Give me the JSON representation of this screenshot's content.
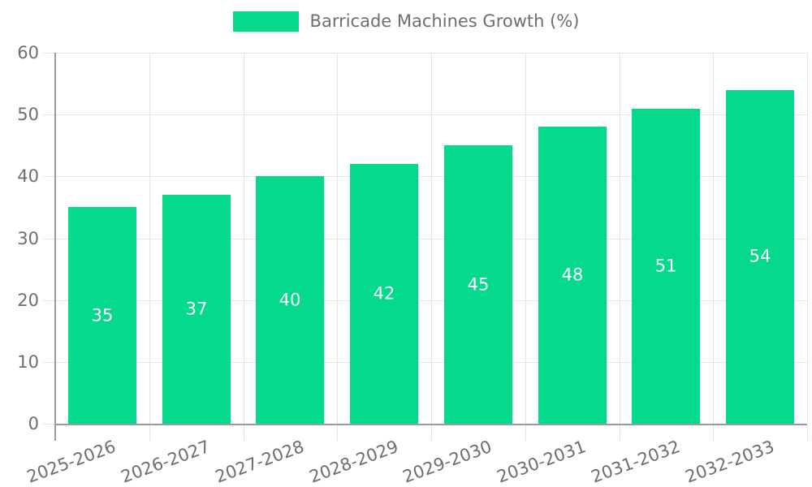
{
  "chart_data": {
    "type": "bar",
    "title": "",
    "legend": {
      "label": "Barricade Machines Growth (%)",
      "position": "top"
    },
    "categories": [
      "2025-2026",
      "2026-2027",
      "2027-2028",
      "2028-2029",
      "2029-2030",
      "2030-2031",
      "2031-2032",
      "2032-2033"
    ],
    "series": [
      {
        "name": "Barricade Machines Growth (%)",
        "color": "#05d98c",
        "values": [
          35,
          37,
          40,
          42,
          45,
          48,
          51,
          54
        ]
      }
    ],
    "bar_labels": [
      "35",
      "37",
      "40",
      "42",
      "45",
      "48",
      "51",
      "54"
    ],
    "bar_label_color": "#ffffff",
    "xlabel": "",
    "ylabel": "",
    "ylim": [
      0,
      60
    ],
    "yticks": [
      0,
      10,
      20,
      30,
      40,
      50,
      60
    ],
    "grid": {
      "horizontal": true,
      "vertical": true,
      "color": "#e5e5e5"
    },
    "axis": {
      "line_color": "#9b9b9b",
      "tick_color": "#e5e5e5",
      "label_color": "#6e6e6e"
    },
    "x_label_rotation_deg": -20
  }
}
